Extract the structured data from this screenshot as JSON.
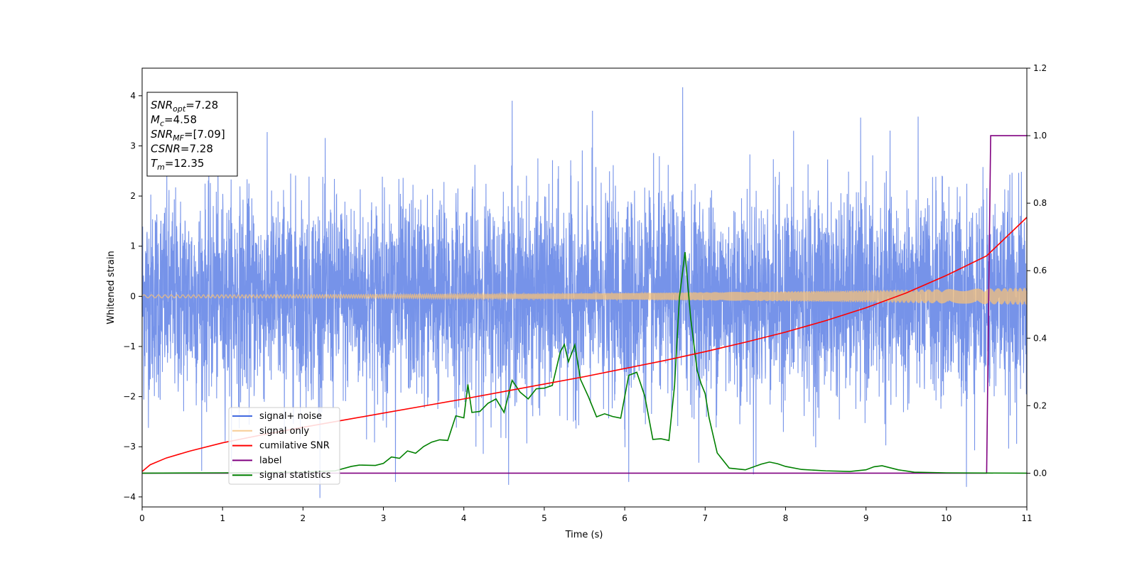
{
  "chart_data": {
    "type": "line",
    "xlabel": "Time (s)",
    "ylabel": "Whitened strain",
    "xlim": [
      0,
      11
    ],
    "ylim_left": [
      -4.2,
      4.55
    ],
    "ylim_right": [
      -0.1,
      1.2
    ],
    "x_ticks": [
      0,
      1,
      2,
      3,
      4,
      5,
      6,
      7,
      8,
      9,
      10,
      11
    ],
    "y_ticks_left": [
      -4,
      -3,
      -2,
      -1,
      0,
      1,
      2,
      3,
      4
    ],
    "y_ticks_right": [
      0.0,
      0.2,
      0.4,
      0.6,
      0.8,
      1.0,
      1.2
    ],
    "grid": false,
    "legend_position": "lower-left",
    "info_box": {
      "position": "top-left",
      "lines": [
        {
          "main": "SNR",
          "sub": "opt",
          "rest": "=7.28"
        },
        {
          "main": "M",
          "sub": "c",
          "rest": "=4.58"
        },
        {
          "main": "SNR",
          "sub": "MF",
          "rest": "=[7.09]"
        },
        {
          "main": "CSNR",
          "sub": "",
          "rest": "=7.28"
        },
        {
          "main": "T",
          "sub": "m",
          "rest": "=12.35"
        }
      ]
    },
    "series": [
      {
        "name": "signal+ noise",
        "color": "#4169e1",
        "axis": "left",
        "kind": "noise",
        "sigma": 1.0,
        "peaks": [
          [
            6.72,
            4.17
          ],
          [
            4.6,
            3.9
          ],
          [
            7.6,
            -3.55
          ],
          [
            10.25,
            -3.8
          ],
          [
            6.05,
            -3.7
          ],
          [
            3.15,
            -3.7
          ],
          [
            8.1,
            3.3
          ],
          [
            5.6,
            3.7
          ]
        ]
      },
      {
        "name": "signal only",
        "color": "#f5c07a",
        "axis": "left",
        "kind": "chirp",
        "amplitude_start": 0.03,
        "amplitude_end": 0.17
      },
      {
        "name": "cumilative SNR",
        "color": "#ff0000",
        "axis": "right",
        "x": [
          0,
          0.1,
          0.3,
          0.6,
          1.0,
          1.5,
          2.0,
          2.5,
          3.0,
          3.5,
          4.0,
          4.5,
          5.0,
          5.5,
          6.0,
          6.5,
          7.0,
          7.5,
          8.0,
          8.5,
          9.0,
          9.5,
          10.0,
          10.5,
          11.0
        ],
        "y": [
          0.005,
          0.025,
          0.045,
          0.066,
          0.09,
          0.114,
          0.136,
          0.157,
          0.178,
          0.199,
          0.22,
          0.242,
          0.264,
          0.286,
          0.31,
          0.334,
          0.36,
          0.388,
          0.418,
          0.452,
          0.49,
          0.534,
          0.586,
          0.644,
          0.758
        ]
      },
      {
        "name": "label",
        "color": "#800080",
        "axis": "right",
        "x": [
          0,
          10.5,
          10.55,
          11.0
        ],
        "y": [
          0,
          0,
          1,
          1
        ]
      },
      {
        "name": "signal statistics",
        "color": "#008000",
        "axis": "right",
        "x": [
          0,
          1.0,
          2.0,
          2.4,
          2.6,
          2.7,
          2.9,
          3.0,
          3.1,
          3.2,
          3.3,
          3.4,
          3.5,
          3.6,
          3.7,
          3.8,
          3.9,
          4.0,
          4.05,
          4.1,
          4.2,
          4.3,
          4.4,
          4.5,
          4.6,
          4.7,
          4.8,
          4.9,
          5.0,
          5.1,
          5.2,
          5.25,
          5.3,
          5.38,
          5.45,
          5.55,
          5.65,
          5.75,
          5.85,
          5.95,
          6.05,
          6.15,
          6.25,
          6.35,
          6.45,
          6.55,
          6.62,
          6.68,
          6.75,
          6.82,
          6.9,
          6.95,
          7.0,
          7.05,
          7.15,
          7.3,
          7.5,
          7.7,
          7.8,
          7.9,
          8.0,
          8.2,
          8.5,
          8.8,
          9.0,
          9.1,
          9.2,
          9.4,
          9.6,
          10.0,
          11.0
        ],
        "y": [
          0,
          0.001,
          0.003,
          0.007,
          0.02,
          0.024,
          0.023,
          0.029,
          0.048,
          0.044,
          0.066,
          0.059,
          0.079,
          0.092,
          0.099,
          0.097,
          0.17,
          0.164,
          0.263,
          0.18,
          0.183,
          0.207,
          0.22,
          0.18,
          0.275,
          0.24,
          0.22,
          0.25,
          0.252,
          0.26,
          0.36,
          0.381,
          0.33,
          0.38,
          0.278,
          0.226,
          0.167,
          0.176,
          0.168,
          0.163,
          0.29,
          0.299,
          0.228,
          0.1,
          0.102,
          0.097,
          0.26,
          0.52,
          0.655,
          0.46,
          0.305,
          0.265,
          0.236,
          0.163,
          0.06,
          0.015,
          0.01,
          0.027,
          0.033,
          0.028,
          0.02,
          0.011,
          0.007,
          0.005,
          0.01,
          0.019,
          0.022,
          0.01,
          0.003,
          0.001,
          0
        ]
      }
    ]
  }
}
